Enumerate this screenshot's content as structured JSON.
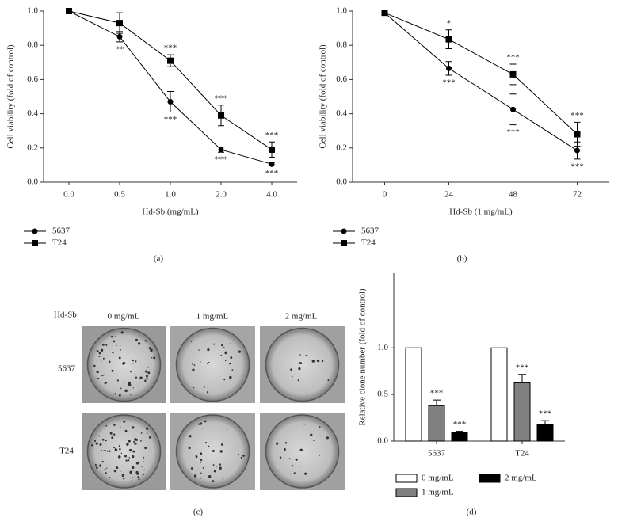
{
  "chart_data": [
    {
      "type": "line",
      "panel_label": "(a)",
      "xlabel": "Hd-Sb (mg/mL)",
      "ylabel": "Cell viability (fold of control)",
      "categories": [
        "0.0",
        "0.5",
        "1.0",
        "2.0",
        "4.0"
      ],
      "ylim": [
        0,
        1
      ],
      "yticks": [
        {
          "value": 0,
          "label": "0.0"
        },
        0.2,
        0.4,
        0.6,
        0.8,
        {
          "value": 1,
          "label": "1.0"
        }
      ],
      "series": [
        {
          "name": "5637",
          "color": "#000000",
          "marker": "circle",
          "values": [
            1.0,
            0.85,
            0.47,
            0.19,
            0.105
          ],
          "errors": [
            0,
            0.03,
            0.06,
            0.015,
            0.01
          ],
          "significance": [
            null,
            "**",
            "***",
            "***",
            "***"
          ]
        },
        {
          "name": "T24",
          "color": "#000000",
          "marker": "square",
          "values": [
            1.0,
            0.93,
            0.71,
            0.39,
            0.19
          ],
          "errors": [
            0,
            0.06,
            0.035,
            0.06,
            0.045
          ],
          "significance": [
            null,
            null,
            "***",
            "***",
            "***"
          ]
        }
      ]
    },
    {
      "type": "line",
      "panel_label": "(b)",
      "xlabel": "Hd-Sb (1 mg/mL)",
      "ylabel": "Cell viability (fold of control)",
      "categories": [
        "0",
        "24",
        "48",
        "72"
      ],
      "ylim": [
        0,
        1
      ],
      "yticks": [
        {
          "value": 0,
          "label": "0.0"
        },
        0.2,
        0.4,
        0.6,
        0.8,
        {
          "value": 1,
          "label": "1.0"
        }
      ],
      "series": [
        {
          "name": "5637",
          "color": "#000000",
          "marker": "circle",
          "values": [
            0.99,
            0.665,
            0.425,
            0.185
          ],
          "errors": [
            0,
            0.04,
            0.09,
            0.05
          ],
          "significance": [
            null,
            "***",
            "***",
            "***"
          ]
        },
        {
          "name": "T24",
          "color": "#000000",
          "marker": "square",
          "values": [
            0.99,
            0.835,
            0.63,
            0.28
          ],
          "errors": [
            0,
            0.055,
            0.06,
            0.07
          ],
          "significance": [
            null,
            "*",
            "***",
            "***"
          ]
        }
      ]
    },
    {
      "type": "bar",
      "panel_label": "(d)",
      "ylabel": "Relative clone number (fold of control)",
      "categories": [
        "5637",
        "T24"
      ],
      "ylim": [
        0,
        1.8
      ],
      "yticks": [
        {
          "value": 0,
          "label": "0.0"
        },
        0.5,
        {
          "value": 1,
          "label": "1.0"
        }
      ],
      "series": [
        {
          "name": "0 mg/mL",
          "color": "#ffffff",
          "values": [
            1.0,
            1.0
          ]
        },
        {
          "name": "1 mg/mL",
          "color": "#808080",
          "values": [
            0.38,
            0.625
          ],
          "errors": [
            0.06,
            0.09
          ],
          "significance": [
            "***",
            "***"
          ]
        },
        {
          "name": "2 mg/mL",
          "color": "#000000",
          "values": [
            0.09,
            0.175
          ],
          "errors": [
            0.015,
            0.045
          ],
          "significance": [
            "***",
            "***"
          ]
        }
      ]
    }
  ],
  "panel_c": {
    "panel_label": "(c)",
    "treatment": "Hd-Sb",
    "columns": [
      "0 mg/mL",
      "1 mg/mL",
      "2 mg/mL"
    ],
    "rows": [
      "5637",
      "T24"
    ]
  }
}
